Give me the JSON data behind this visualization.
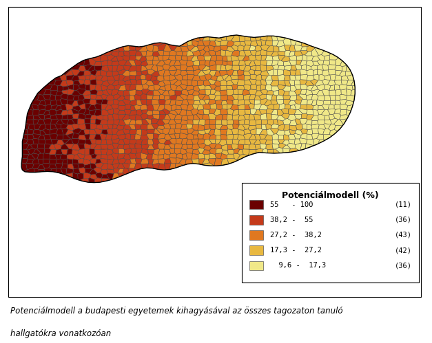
{
  "title": "Potenciálmodell (%)",
  "caption_line1": "Potenciálmodell a budapesti egyetemek kihagyásával az összes tagozaton tanuló",
  "caption_line2": "hallgatókra vonatkozóan",
  "colors": {
    "c1": "#6B0000",
    "c2": "#C43A1A",
    "c3": "#E07820",
    "c4": "#E8B840",
    "c5": "#F0E888",
    "border": "#444444",
    "background": "#FFFFFF"
  },
  "legend_entries": [
    {
      "range": "55   - 100",
      "count": "(11)",
      "color": "#6B0000"
    },
    {
      "range": "38,2 -  55",
      "count": "(36)",
      "color": "#C43A1A"
    },
    {
      "range": "27,2 -  38,2",
      "count": "(43)",
      "color": "#E07820"
    },
    {
      "range": "17,3 -  27,2",
      "count": "(42)",
      "color": "#E8B840"
    },
    {
      "range": "  9,6 -  17,3",
      "count": "(36)",
      "color": "#F0E888"
    }
  ],
  "figsize": [
    6.27,
    4.99
  ],
  "dpi": 100
}
